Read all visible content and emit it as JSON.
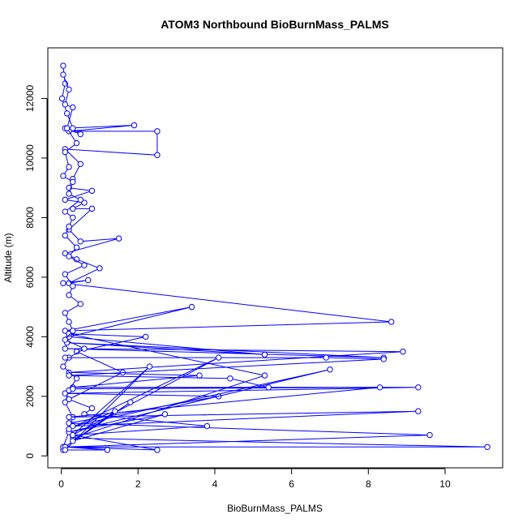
{
  "chart_data": {
    "type": "line",
    "title": "ATOM3 Northbound BioBurnMass_PALMS",
    "xlabel": "BioBurnMass_PALMS",
    "ylabel": "Altitude (m)",
    "xlim": [
      -0.35,
      11.5
    ],
    "ylim": [
      -400,
      13700
    ],
    "x_ticks": [
      0,
      2,
      4,
      6,
      8,
      10
    ],
    "y_ticks": [
      0,
      2000,
      4000,
      6000,
      8000,
      10000,
      12000
    ],
    "grid": false,
    "legend": "none",
    "series_color": "#0000ff",
    "series": [
      {
        "x": [
          0.05,
          0.1,
          0.02,
          0.15,
          0.3,
          0.5,
          0.1,
          1.9,
          0.2,
          2.5,
          2.5,
          0.1,
          0.5,
          0.3,
          0.2,
          0.8,
          0.1,
          0.6,
          0.3,
          0.8,
          0.2,
          0.5,
          1.5,
          0.1,
          0.4,
          1.0,
          0.2,
          0.7,
          0.05,
          8.6,
          0.1,
          3.4,
          0.2,
          5.3,
          0.15,
          8.4,
          0.1,
          8.9,
          0.2,
          3.6,
          0.3,
          9.3,
          0.1,
          4.1,
          0.2,
          9.6,
          0.1,
          11.1,
          0.3,
          5.3,
          0.2,
          2.2,
          0.4,
          1.6,
          0.2,
          0.8,
          0.6,
          3.8,
          0.3,
          2.5,
          0.1,
          1.2,
          0.05
        ],
        "y": [
          13100,
          12500,
          12000,
          11500,
          11000,
          10800,
          11000,
          11100,
          10900,
          10900,
          10100,
          10300,
          9800,
          9300,
          9000,
          8900,
          8600,
          8500,
          8300,
          8300,
          7600,
          7200,
          7300,
          6800,
          6600,
          6300,
          5800,
          5900,
          5800,
          4500,
          4200,
          5000,
          4000,
          3400,
          3800,
          3300,
          3600,
          3500,
          2800,
          2700,
          2300,
          2300,
          2100,
          2000,
          1100,
          700,
          300,
          300,
          600,
          2700,
          4100,
          4000,
          3500,
          2800,
          1900,
          1600,
          1400,
          1000,
          700,
          200,
          300,
          200,
          200
        ]
      },
      {
        "x": [
          0.05,
          0.2,
          0.1,
          0.3,
          0.15,
          0.4,
          0.1,
          0.2,
          0.05,
          0.3,
          0.2,
          0.5,
          0.1,
          0.3,
          0.2,
          0.1,
          0.4,
          0.2,
          0.6,
          0.1,
          0.3,
          0.2,
          0.5,
          0.1,
          0.2,
          0.3,
          0.1,
          0.6,
          0.2,
          0.05,
          0.4,
          0.2,
          0.1,
          0.3,
          0.2,
          0.05
        ],
        "y": [
          12800,
          12300,
          11800,
          11700,
          11000,
          10500,
          10200,
          9700,
          9400,
          9200,
          8800,
          8600,
          8200,
          8000,
          7700,
          7400,
          7000,
          6700,
          6400,
          6100,
          5700,
          5400,
          5100,
          4800,
          4500,
          4200,
          3900,
          3600,
          3300,
          3000,
          2600,
          2200,
          1800,
          1300,
          800,
          300
        ]
      },
      {
        "x": [
          0.1,
          6.9,
          8.4,
          0.2,
          4.4,
          5.4,
          0.3,
          8.3,
          0.2,
          9.3,
          0.3,
          7.0,
          0.2,
          2.7,
          0.3,
          1.8,
          0.1,
          1.4,
          0.2,
          4.1,
          0.3,
          2.3,
          0.1
        ],
        "y": [
          3300,
          3300,
          3250,
          2700,
          2600,
          2300,
          2250,
          2300,
          1300,
          1500,
          1000,
          2900,
          800,
          1400,
          500,
          1800,
          300,
          1500,
          900,
          3300,
          700,
          3000,
          200
        ]
      }
    ]
  }
}
